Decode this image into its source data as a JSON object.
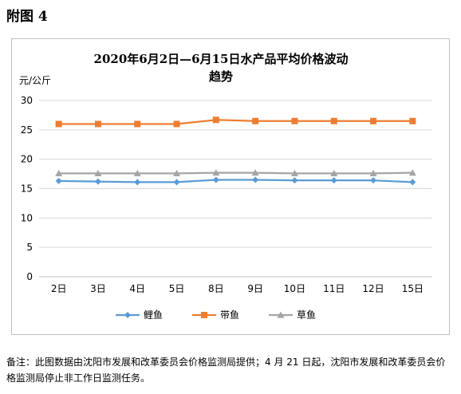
{
  "page": {
    "heading": "附图 4",
    "note": "备注：此图数据由沈阳市发展和改革委员会价格监测局提供；4 月 21 日起，沈阳市发展和改革委员会价格监测局停止非工作日监测任务。"
  },
  "chart_data": {
    "type": "line",
    "title_line1": "2020年6月2日—6月15日水产品平均价格波动",
    "title_line2": "趋势",
    "ylabel": "元/公斤",
    "xlabel": "",
    "ylim": [
      0,
      30
    ],
    "yticks": [
      0,
      5,
      10,
      15,
      20,
      25,
      30
    ],
    "grid": true,
    "legend_position": "bottom",
    "categories": [
      "2日",
      "3日",
      "4日",
      "5日",
      "8日",
      "9日",
      "10日",
      "11日",
      "12日",
      "15日"
    ],
    "series": [
      {
        "name": "鲤鱼",
        "color": "#5b9bd5",
        "marker": "diamond",
        "values": [
          16.3,
          16.2,
          16.1,
          16.1,
          16.5,
          16.5,
          16.4,
          16.4,
          16.4,
          16.1
        ]
      },
      {
        "name": "带鱼",
        "color": "#ed7d31",
        "marker": "square",
        "values": [
          26.0,
          26.0,
          26.0,
          26.0,
          26.7,
          26.5,
          26.5,
          26.5,
          26.5,
          26.5
        ]
      },
      {
        "name": "草鱼",
        "color": "#a5a5a5",
        "marker": "triangle",
        "values": [
          17.6,
          17.6,
          17.6,
          17.6,
          17.7,
          17.7,
          17.6,
          17.6,
          17.6,
          17.7
        ]
      }
    ]
  }
}
